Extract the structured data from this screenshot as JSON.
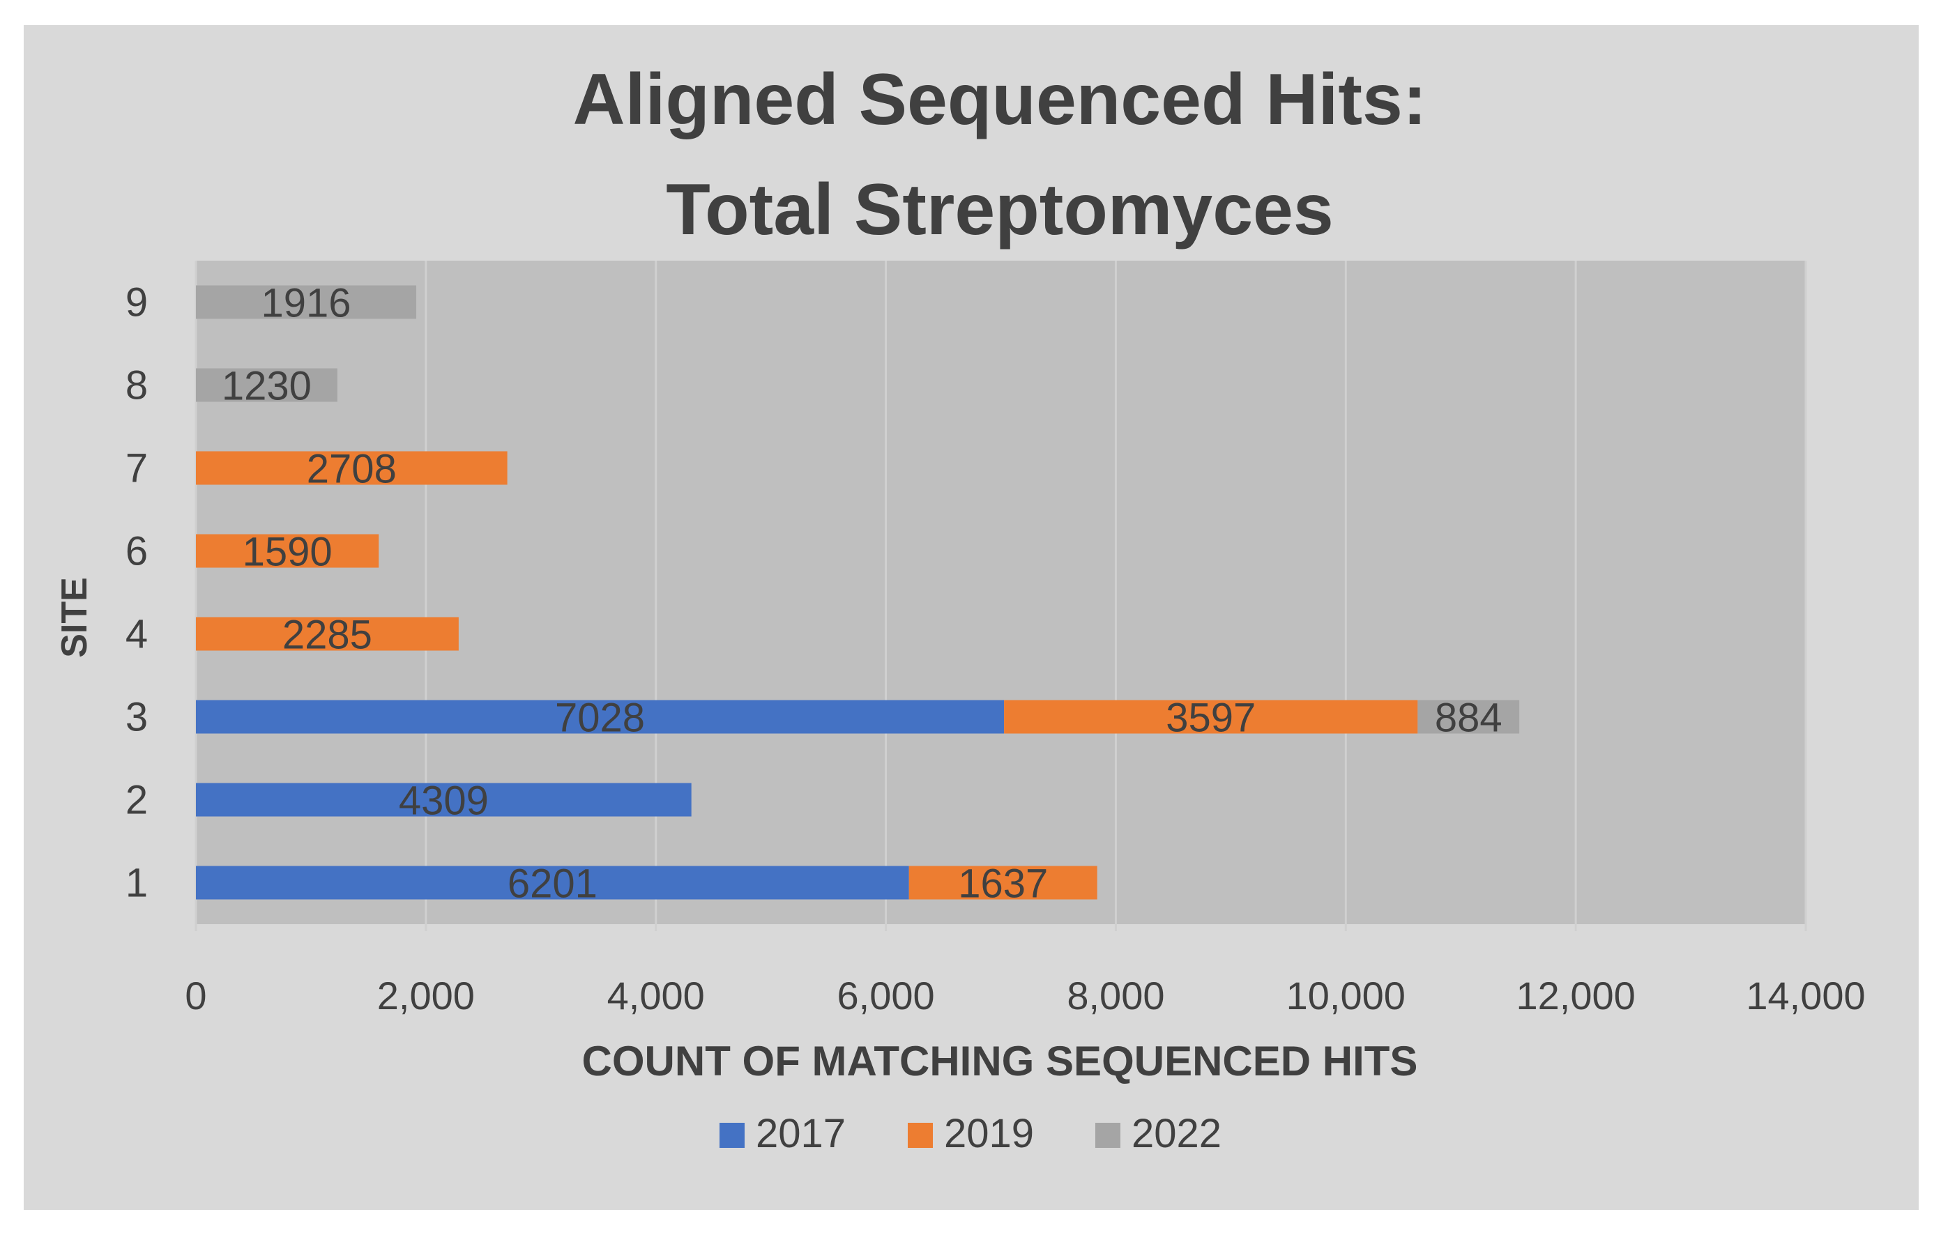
{
  "chart_data": {
    "type": "bar",
    "orientation": "horizontal",
    "stacked": true,
    "title_lines": [
      "Aligned Sequenced Hits:",
      "Total Streptomyces"
    ],
    "xlabel": "COUNT OF MATCHING SEQUENCED HITS",
    "ylabel": "SITE",
    "categories": [
      "1",
      "2",
      "3",
      "4",
      "6",
      "7",
      "8",
      "9"
    ],
    "xlim": [
      0,
      14000
    ],
    "xticks": [
      0,
      2000,
      4000,
      6000,
      8000,
      10000,
      12000,
      14000
    ],
    "xtick_labels": [
      "0",
      "2,000",
      "4,000",
      "6,000",
      "8,000",
      "10,000",
      "12,000",
      "14,000"
    ],
    "grid": "vertical",
    "legend_position": "bottom",
    "series": [
      {
        "name": "2017",
        "color": "#4472c4",
        "values": [
          6201,
          4309,
          7028,
          0,
          0,
          0,
          0,
          0
        ]
      },
      {
        "name": "2019",
        "color": "#ed7d31",
        "values": [
          1637,
          0,
          3597,
          2285,
          1590,
          2708,
          0,
          0
        ]
      },
      {
        "name": "2022",
        "color": "#a5a5a5",
        "values": [
          0,
          0,
          884,
          0,
          0,
          0,
          1230,
          1916
        ]
      }
    ]
  },
  "colors": {
    "frame_bg": "#d9d9d9",
    "plot_bg": "#bfbfbf",
    "gridline": "#d0d0d0",
    "text": "#404040"
  }
}
